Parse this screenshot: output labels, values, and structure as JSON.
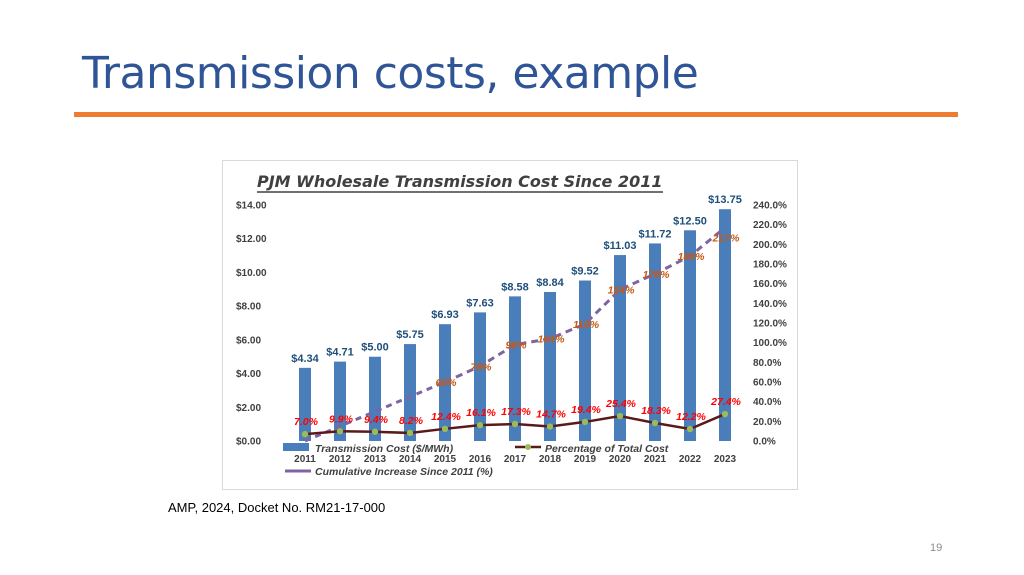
{
  "slide": {
    "title": "Transmission costs, example",
    "source": "AMP, 2024, Docket No. RM21-17-000",
    "page_number": "19"
  },
  "colors": {
    "title": "#2f5597",
    "accent_rule": "#ed7d31",
    "bars": "#4a7ebb",
    "cumulative_line": "#8064a2",
    "percentage_line": "#5a1a1a",
    "percentage_marker": "#9bbb59",
    "bar_labels": "#1f4e79",
    "cumulative_labels": "#c55a11",
    "percentage_labels": "#ff0000"
  },
  "chart_data": {
    "type": "bar",
    "title": "PJM Wholesale Transmission Cost Since 2011",
    "categories": [
      "2011",
      "2012",
      "2013",
      "2014",
      "2015",
      "2016",
      "2017",
      "2018",
      "2019",
      "2020",
      "2021",
      "2022",
      "2023"
    ],
    "y_left": {
      "range": [
        0,
        14
      ],
      "ticks": [
        "$0.00",
        "$2.00",
        "$4.00",
        "$6.00",
        "$8.00",
        "$10.00",
        "$12.00",
        "$14.00"
      ]
    },
    "y_right": {
      "range": [
        0,
        240
      ],
      "ticks": [
        "0.0%",
        "20.0%",
        "40.0%",
        "60.0%",
        "80.0%",
        "100.0%",
        "120.0%",
        "140.0%",
        "160.0%",
        "180.0%",
        "200.0%",
        "220.0%",
        "240.0%"
      ]
    },
    "grid": false,
    "legend_placement": "bottom",
    "series": [
      {
        "name": "Transmission Cost ($/MWh)",
        "kind": "bar",
        "axis": "left",
        "values": [
          4.34,
          4.71,
          5.0,
          5.75,
          6.93,
          7.63,
          8.58,
          8.84,
          9.52,
          11.03,
          11.72,
          12.5,
          13.75
        ],
        "labels": [
          "$4.34",
          "$4.71",
          "$5.00",
          "$5.75",
          "$6.93",
          "$7.63",
          "$8.58",
          "$8.84",
          "$9.52",
          "$11.03",
          "$11.72",
          "$12.50",
          "$13.75"
        ]
      },
      {
        "name": "Percentage of Total Cost",
        "kind": "line",
        "axis": "right",
        "values": [
          7.0,
          9.9,
          9.4,
          8.2,
          12.4,
          16.1,
          17.3,
          14.7,
          19.4,
          25.4,
          18.3,
          12.2,
          27.4
        ],
        "labels": [
          "7.0%",
          "9.9%",
          "9.4%",
          "8.2%",
          "12.4%",
          "16.1%",
          "17.3%",
          "14.7%",
          "19.4%",
          "25.4%",
          "18.3%",
          "12.2%",
          "27.4%"
        ]
      },
      {
        "name": "Cumulative Increase Since 2011 (%)",
        "kind": "line",
        "axis": "right",
        "values": [
          null,
          null,
          null,
          null,
          60,
          76,
          98,
          104,
          119,
          154,
          170,
          188,
          217
        ],
        "labels": [
          null,
          null,
          null,
          null,
          "60%",
          "76%",
          "98%",
          "104%",
          "119%",
          "154%",
          "170%",
          "188%",
          "217%"
        ]
      }
    ]
  }
}
